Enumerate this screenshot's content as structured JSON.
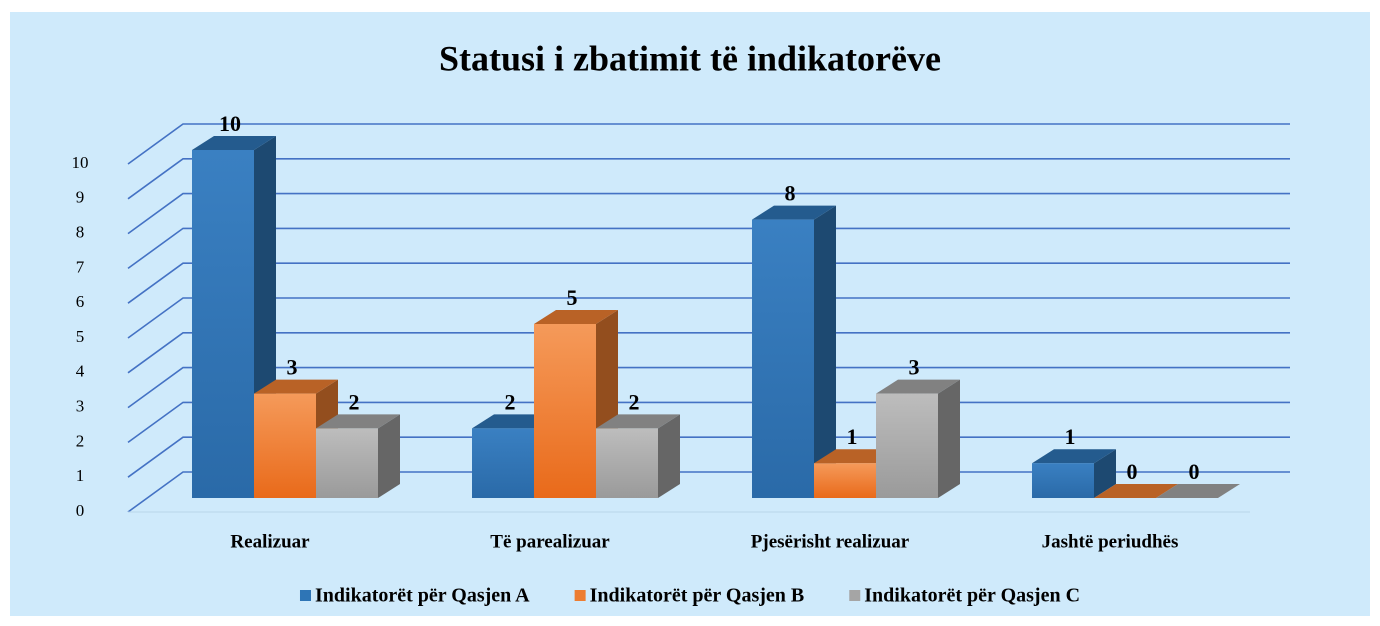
{
  "chart_data": {
    "type": "bar3d",
    "title": "Statusi i zbatimit të indikatorëve",
    "categories": [
      "Realizuar",
      "Të parealizuar",
      "Pjesërisht realizuar",
      "Jashtë periudhës"
    ],
    "series": [
      {
        "name": "Indikatorët për Qasjen A",
        "color": "#2e75b6",
        "values": [
          10,
          2,
          8,
          1
        ]
      },
      {
        "name": "Indikatorët për Qasjen B",
        "color": "#ed7d31",
        "values": [
          3,
          5,
          1,
          0
        ]
      },
      {
        "name": "Indikatorët për Qasjen C",
        "color": "#a5a5a5",
        "values": [
          2,
          2,
          3,
          0
        ]
      }
    ],
    "ylim": [
      0,
      10
    ],
    "yticks": [
      0,
      1,
      2,
      3,
      4,
      5,
      6,
      7,
      8,
      9,
      10
    ],
    "grid": true,
    "legend": "bottom"
  }
}
